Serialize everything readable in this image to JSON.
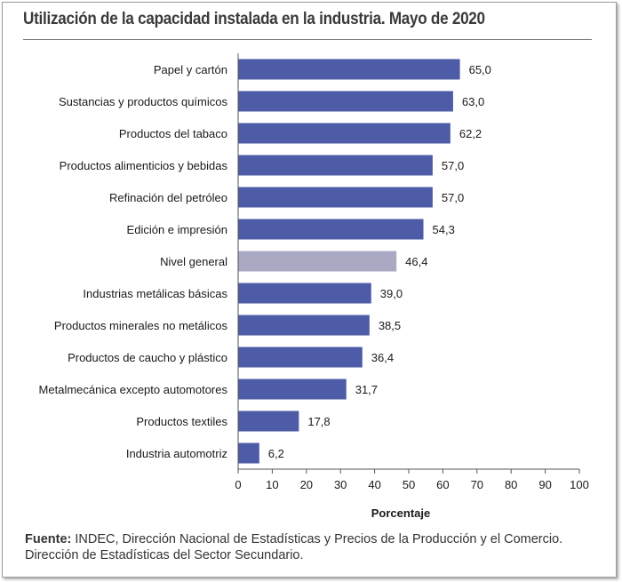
{
  "chart_data": {
    "type": "bar",
    "orientation": "horizontal",
    "title": "Utilización de la capacidad instalada en la industria. Mayo de 2020",
    "xlabel": "Porcentaje",
    "ylabel": "",
    "xlim": [
      0,
      100
    ],
    "xticks": [
      0,
      10,
      20,
      30,
      40,
      50,
      60,
      70,
      80,
      90,
      100
    ],
    "grid": false,
    "categories": [
      "Papel y cartón",
      "Sustancias y productos químicos",
      "Productos del tabaco",
      "Productos alimenticios y bebidas",
      "Refinación del petróleo",
      "Edición e impresión",
      "Nivel general",
      "Industrias metálicas básicas",
      "Productos minerales no metálicos",
      "Productos de caucho y plástico",
      "Metalmecánica excepto automotores",
      "Productos textiles",
      "Industria automotriz"
    ],
    "values": [
      65.0,
      63.0,
      62.2,
      57.0,
      57.0,
      54.3,
      46.4,
      39.0,
      38.5,
      36.4,
      31.7,
      17.8,
      6.2
    ],
    "value_labels": [
      "65,0",
      "63,0",
      "62,2",
      "57,0",
      "57,0",
      "54,3",
      "46,4",
      "39,0",
      "38,5",
      "36,4",
      "31,7",
      "17,8",
      "6,2"
    ],
    "highlight_category": "Nivel general",
    "colors": {
      "bar": "#4e5ba6",
      "highlight": "#a9a9c4",
      "axis": "#555555"
    }
  },
  "footer": {
    "source_label": "Fuente:",
    "source_text": " INDEC, Dirección Nacional de Estadísticas y Precios de la Producción y el Comercio. Dirección de Estadísticas del Sector Secundario."
  }
}
